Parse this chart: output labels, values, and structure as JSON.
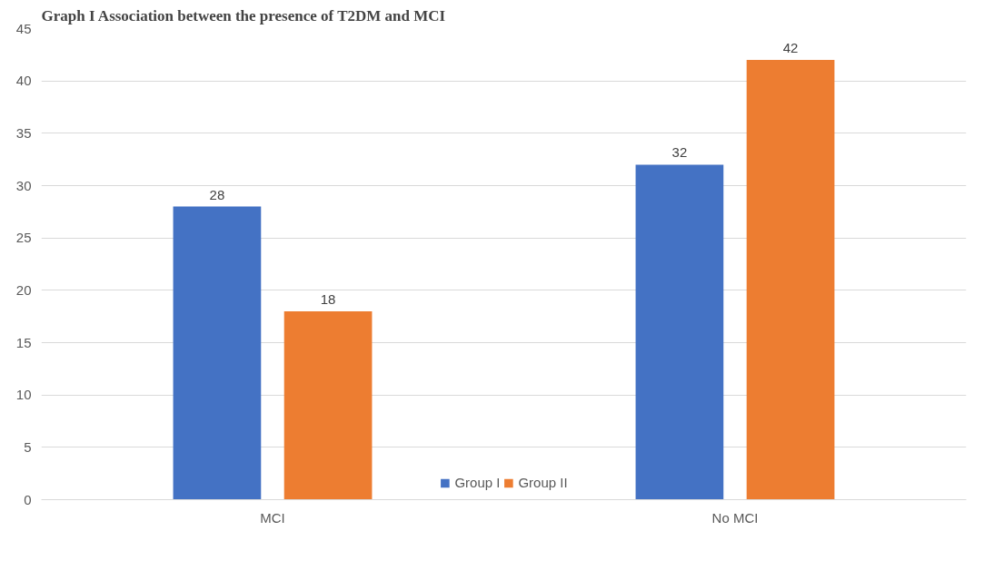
{
  "chart_data": {
    "type": "bar",
    "title": "Graph I Association between the presence of T2DM and MCI",
    "categories": [
      "MCI",
      "No MCI"
    ],
    "series": [
      {
        "name": "Group I",
        "color": "#4472c4",
        "values": [
          28,
          32
        ]
      },
      {
        "name": "Group II",
        "color": "#ed7d31",
        "values": [
          18,
          42
        ]
      }
    ],
    "ylim": [
      0,
      45
    ],
    "yticks": [
      0,
      5,
      10,
      15,
      20,
      25,
      30,
      35,
      40,
      45
    ],
    "grid": "y",
    "legend": "bottom",
    "data_labels": true
  }
}
